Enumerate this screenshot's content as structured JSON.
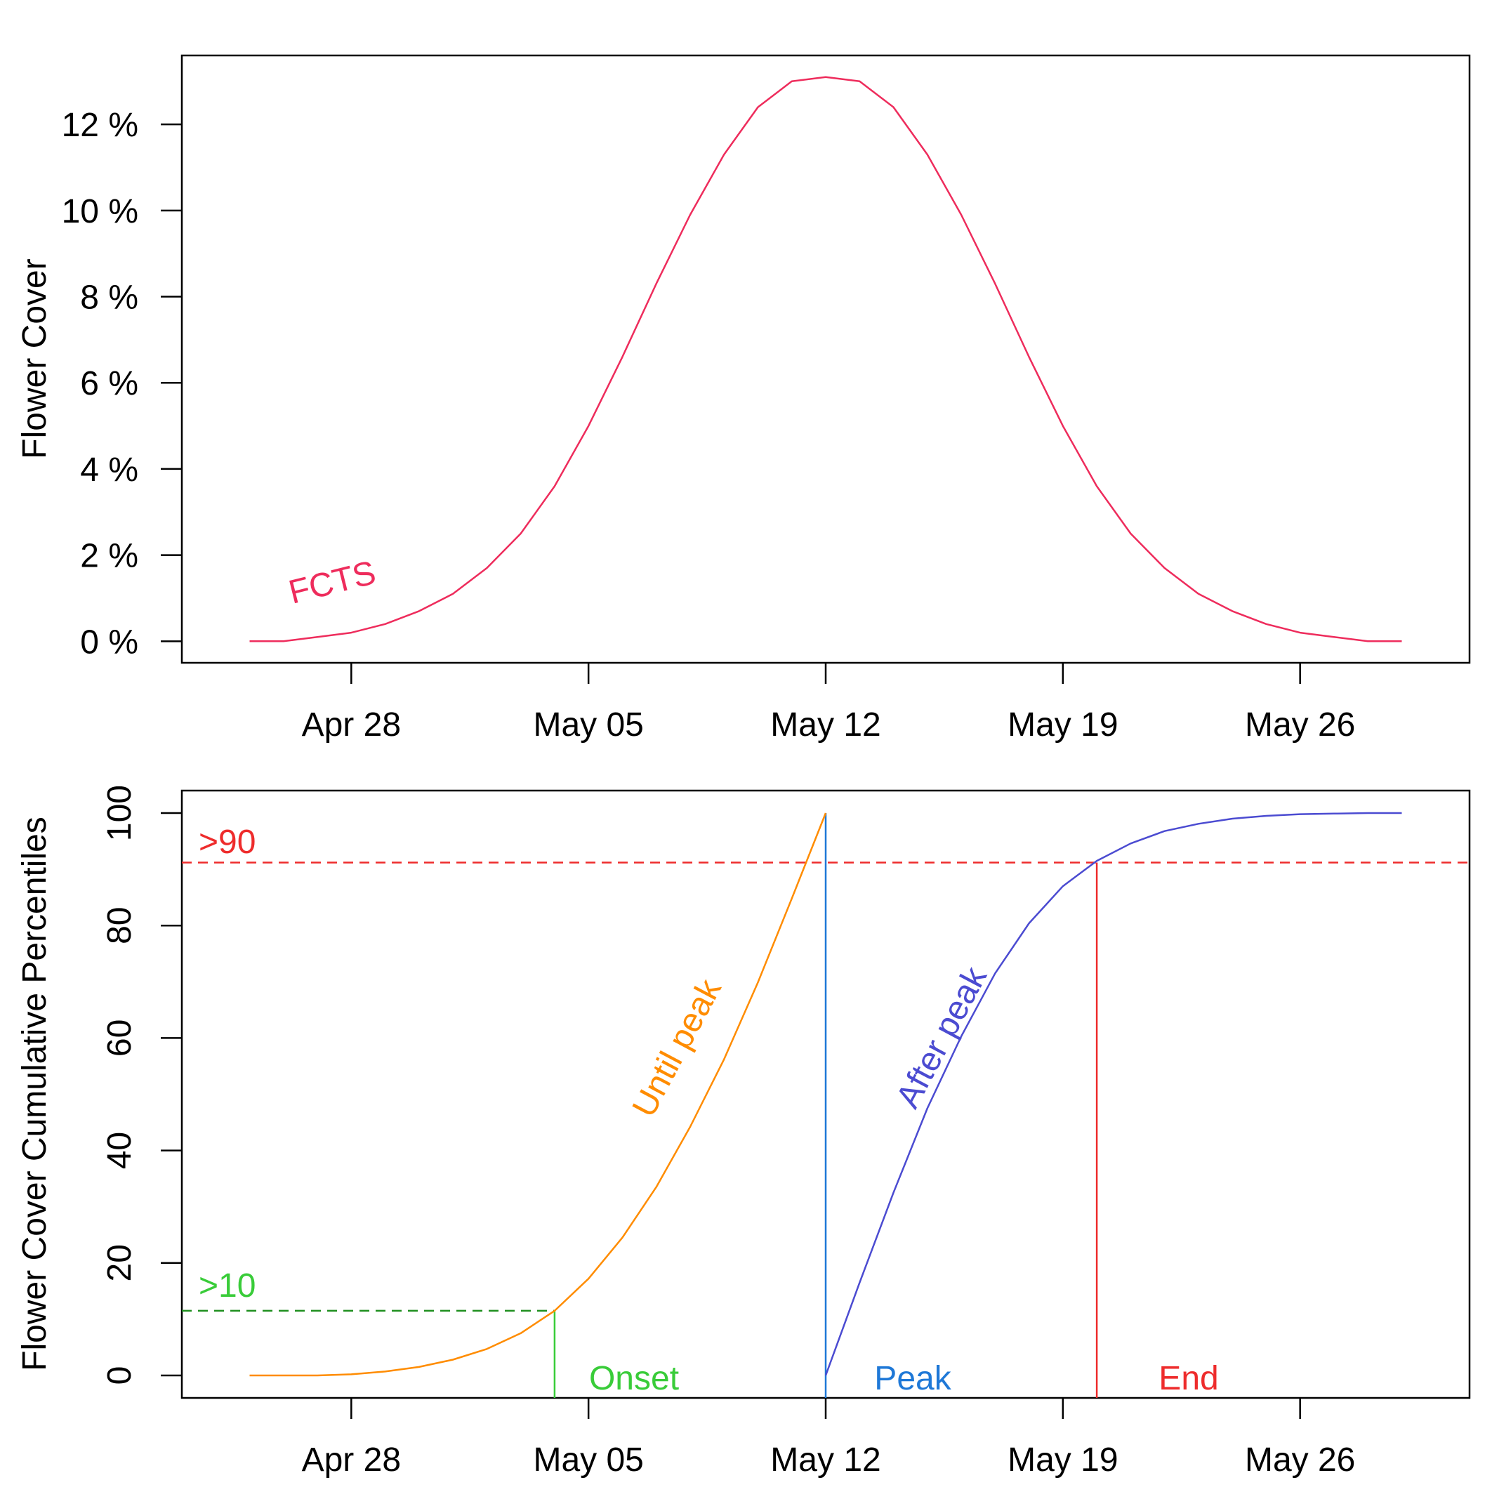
{
  "chart_data": [
    {
      "type": "line",
      "ylabel": "Flower Cover",
      "xlim": [
        "2024-04-23",
        "2024-05-31"
      ],
      "ylim": [
        -0.5,
        13.6
      ],
      "x_ticks": [
        {
          "date": "2024-04-28",
          "label": "Apr 28"
        },
        {
          "date": "2024-05-05",
          "label": "May 05"
        },
        {
          "date": "2024-05-12",
          "label": "May 12"
        },
        {
          "date": "2024-05-19",
          "label": "May 19"
        },
        {
          "date": "2024-05-26",
          "label": "May 26"
        }
      ],
      "y_ticks": [
        {
          "value": 0,
          "label": "0 %"
        },
        {
          "value": 2,
          "label": "2 %"
        },
        {
          "value": 4,
          "label": "4 %"
        },
        {
          "value": 6,
          "label": "6 %"
        },
        {
          "value": 8,
          "label": "8 %"
        },
        {
          "value": 10,
          "label": "10 %"
        },
        {
          "value": 12,
          "label": "12 %"
        }
      ],
      "grid": false,
      "series": [
        {
          "name": "FCTS",
          "color": "#ee2c5c",
          "x": [
            "2024-04-25",
            "2024-04-26",
            "2024-04-27",
            "2024-04-28",
            "2024-04-29",
            "2024-04-30",
            "2024-05-01",
            "2024-05-02",
            "2024-05-03",
            "2024-05-04",
            "2024-05-05",
            "2024-05-06",
            "2024-05-07",
            "2024-05-08",
            "2024-05-09",
            "2024-05-10",
            "2024-05-11",
            "2024-05-12",
            "2024-05-13",
            "2024-05-14",
            "2024-05-15",
            "2024-05-16",
            "2024-05-17",
            "2024-05-18",
            "2024-05-19",
            "2024-05-20",
            "2024-05-21",
            "2024-05-22",
            "2024-05-23",
            "2024-05-24",
            "2024-05-25",
            "2024-05-26",
            "2024-05-27",
            "2024-05-28",
            "2024-05-29"
          ],
          "y": [
            0.0,
            0.0,
            0.1,
            0.2,
            0.4,
            0.7,
            1.1,
            1.7,
            2.5,
            3.6,
            5.0,
            6.6,
            8.3,
            9.9,
            11.3,
            12.4,
            13.0,
            13.1,
            13.0,
            12.4,
            11.3,
            9.9,
            8.3,
            6.6,
            5.0,
            3.6,
            2.5,
            1.7,
            1.1,
            0.7,
            0.4,
            0.2,
            0.1,
            0.0,
            0.0
          ]
        }
      ],
      "annotations": [
        {
          "text": "FCTS",
          "x": "2024-04-28",
          "y": 1.0,
          "color": "#ee2c5c"
        }
      ]
    },
    {
      "type": "line",
      "ylabel": "Flower Cover Cumulative Percentiles",
      "xlim": [
        "2024-04-23",
        "2024-05-31"
      ],
      "ylim": [
        -4,
        104
      ],
      "x_ticks": [
        {
          "date": "2024-04-28",
          "label": "Apr 28"
        },
        {
          "date": "2024-05-05",
          "label": "May 05"
        },
        {
          "date": "2024-05-12",
          "label": "May 12"
        },
        {
          "date": "2024-05-19",
          "label": "May 19"
        },
        {
          "date": "2024-05-26",
          "label": "May 26"
        }
      ],
      "y_ticks": [
        {
          "value": 0,
          "label": "0"
        },
        {
          "value": 20,
          "label": "20"
        },
        {
          "value": 40,
          "label": "40"
        },
        {
          "value": 60,
          "label": "60"
        },
        {
          "value": 80,
          "label": "80"
        },
        {
          "value": 100,
          "label": "100"
        }
      ],
      "grid": false,
      "series": [
        {
          "name": "Until peak",
          "color": "#ff8c00",
          "x": [
            "2024-04-25",
            "2024-04-26",
            "2024-04-27",
            "2024-04-28",
            "2024-04-29",
            "2024-04-30",
            "2024-05-01",
            "2024-05-02",
            "2024-05-03",
            "2024-05-04",
            "2024-05-05",
            "2024-05-06",
            "2024-05-07",
            "2024-05-08",
            "2024-05-09",
            "2024-05-10",
            "2024-05-11",
            "2024-05-12"
          ],
          "y": [
            0,
            0,
            0,
            0.2,
            0.7,
            1.5,
            2.8,
            4.7,
            7.5,
            11.5,
            17.2,
            24.5,
            33.5,
            44.2,
            56.2,
            69.9,
            84.8,
            100
          ]
        },
        {
          "name": "After peak",
          "color": "#4b4bd1",
          "x": [
            "2024-05-12",
            "2024-05-13",
            "2024-05-14",
            "2024-05-15",
            "2024-05-16",
            "2024-05-17",
            "2024-05-18",
            "2024-05-19",
            "2024-05-20",
            "2024-05-21",
            "2024-05-22",
            "2024-05-23",
            "2024-05-24",
            "2024-05-25",
            "2024-05-26",
            "2024-05-27",
            "2024-05-28",
            "2024-05-29"
          ],
          "y": [
            0,
            16.5,
            32.5,
            47.5,
            60.3,
            71.5,
            80.4,
            87.0,
            91.5,
            94.6,
            96.8,
            98.1,
            99.0,
            99.5,
            99.8,
            99.9,
            100,
            100
          ]
        }
      ],
      "reference_lines": [
        {
          "kind": "horizontal",
          "y": 11.5,
          "x_end": "2024-05-04",
          "style": "dashed",
          "color": "#1f8f1f",
          "label": ">10"
        },
        {
          "kind": "horizontal",
          "y": 91.2,
          "style": "dashed",
          "color": "#ee2c2c",
          "label": ">90"
        },
        {
          "kind": "vertical",
          "x": "2024-05-04",
          "y_end": 11.5,
          "color": "#39cc39",
          "label": "Onset"
        },
        {
          "kind": "vertical",
          "x": "2024-05-12",
          "y_end": 100,
          "color": "#1e78d7",
          "label": "Peak"
        },
        {
          "kind": "vertical",
          "x": "2024-05-20",
          "y_end": 91.2,
          "color": "#ee2c2c",
          "label": "End"
        }
      ],
      "annotations": [
        {
          "text": "Until peak",
          "x": "2024-05-08",
          "y": 51,
          "color": "#ff8c00"
        },
        {
          "text": "After peak",
          "x": "2024-05-15",
          "y": 54,
          "color": "#4b4bd1"
        }
      ]
    }
  ]
}
